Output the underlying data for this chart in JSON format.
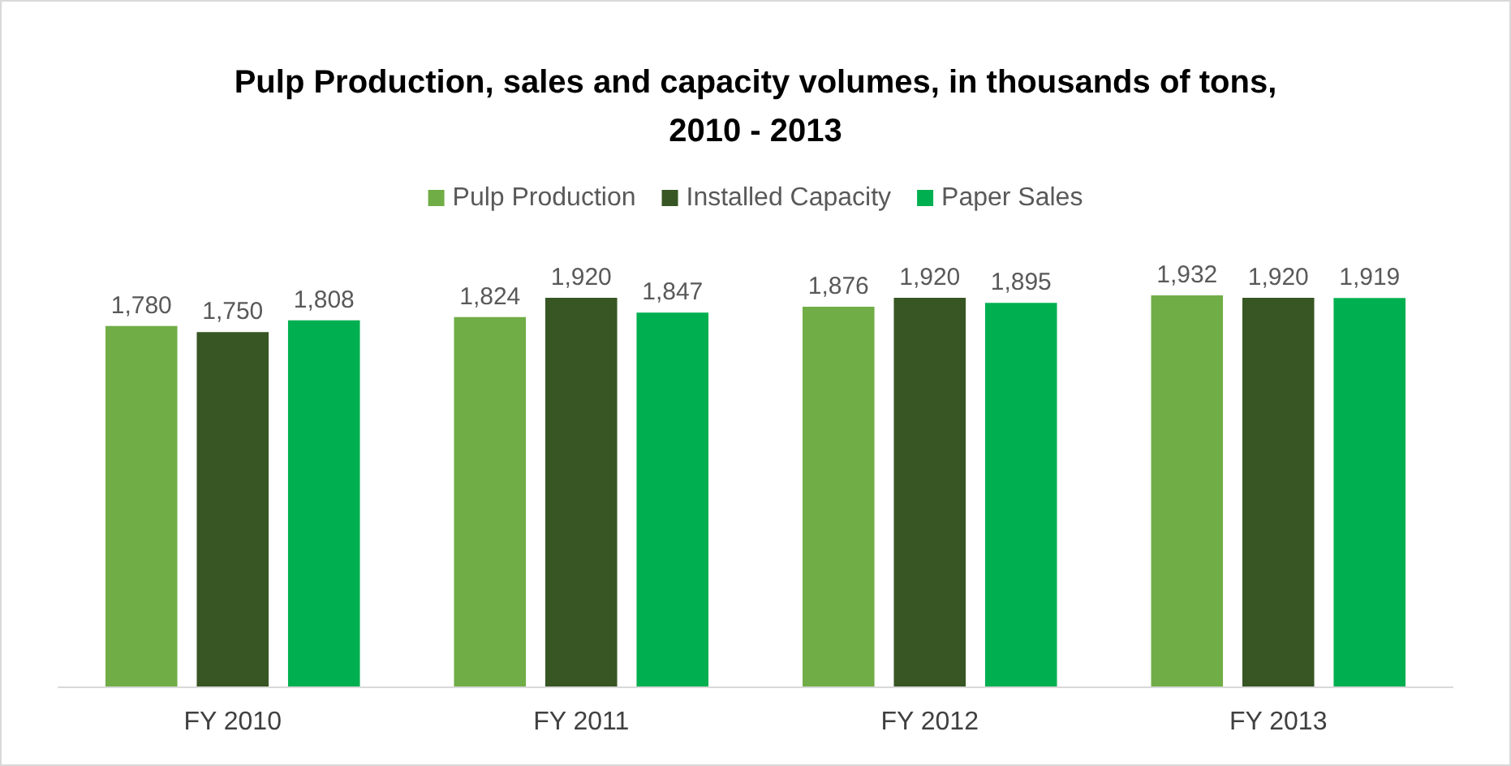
{
  "chart_data": {
    "type": "bar",
    "title": "Pulp Production, sales and capacity volumes, in thousands of tons,\n2010 - 2013",
    "categories": [
      "FY 2010",
      "FY 2011",
      "FY 2012",
      "FY 2013"
    ],
    "series": [
      {
        "name": "Pulp Production",
        "color": "#70ad47",
        "values": [
          1780,
          1824,
          1876,
          1932
        ],
        "value_labels": [
          "1,780",
          "1,824",
          "1,876",
          "1,932"
        ]
      },
      {
        "name": "Installed Capacity",
        "color": "#375623",
        "values": [
          1750,
          1920,
          1920,
          1920
        ],
        "value_labels": [
          "1,750",
          "1,920",
          "1,920",
          "1,920"
        ]
      },
      {
        "name": "Paper Sales",
        "color": "#00b050",
        "values": [
          1808,
          1847,
          1895,
          1919
        ],
        "value_labels": [
          "1,808",
          "1,847",
          "1,895",
          "1,919"
        ]
      }
    ],
    "grid": false,
    "legend": "top",
    "tick_labels": "x"
  }
}
